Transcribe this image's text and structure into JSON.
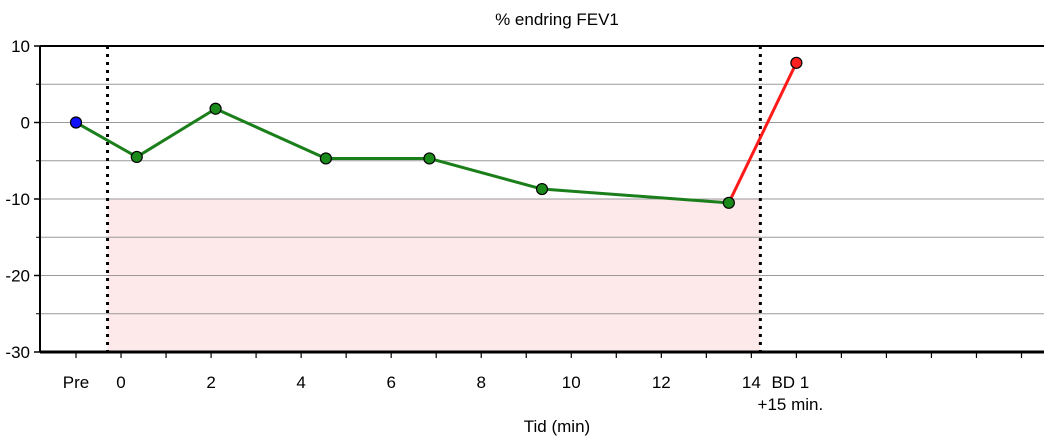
{
  "chart_data": {
    "type": "line",
    "title": "% endring FEV1",
    "xlabel": "Tid (min)",
    "ylabel": "",
    "ylim": [
      -30,
      10
    ],
    "xlim": [
      -1.8,
      20.5
    ],
    "y_ticks": [
      10,
      0,
      -10,
      -20,
      -30
    ],
    "x_ticks": [
      {
        "x": -1,
        "label": "Pre"
      },
      {
        "x": 0,
        "label": "0"
      },
      {
        "x": 2,
        "label": "2"
      },
      {
        "x": 4,
        "label": "4"
      },
      {
        "x": 6,
        "label": "6"
      },
      {
        "x": 8,
        "label": "8"
      },
      {
        "x": 10,
        "label": "10"
      },
      {
        "x": 12,
        "label": "12"
      },
      {
        "x": 14,
        "label": "14"
      }
    ],
    "bd_label": {
      "x": 15,
      "line1": "BD 1",
      "line2": "+15 min."
    },
    "grid": true,
    "shaded_region": {
      "x_start": -0.3,
      "x_end": 14.2,
      "y_min": -30,
      "y_max": -10,
      "color": "#fde8ea"
    },
    "vertical_dotted_lines": [
      -0.3,
      14.2
    ],
    "pre_point": {
      "x": -1,
      "y": 0,
      "color": "#1010ff"
    },
    "series": [
      {
        "color": "#1a7f1a",
        "marker_color": "#1a8a1a",
        "points": [
          {
            "x": -1,
            "y": 0
          },
          {
            "x": 0.35,
            "y": -4.5
          },
          {
            "x": 2.1,
            "y": 1.8
          },
          {
            "x": 4.55,
            "y": -4.7
          },
          {
            "x": 6.85,
            "y": -4.7
          },
          {
            "x": 9.35,
            "y": -8.7
          },
          {
            "x": 13.5,
            "y": -10.5
          }
        ]
      },
      {
        "color": "#ff1a1a",
        "marker_color": "#ff2020",
        "points": [
          {
            "x": 13.5,
            "y": -10.5
          },
          {
            "x": 15,
            "y": 7.8
          }
        ]
      }
    ]
  }
}
